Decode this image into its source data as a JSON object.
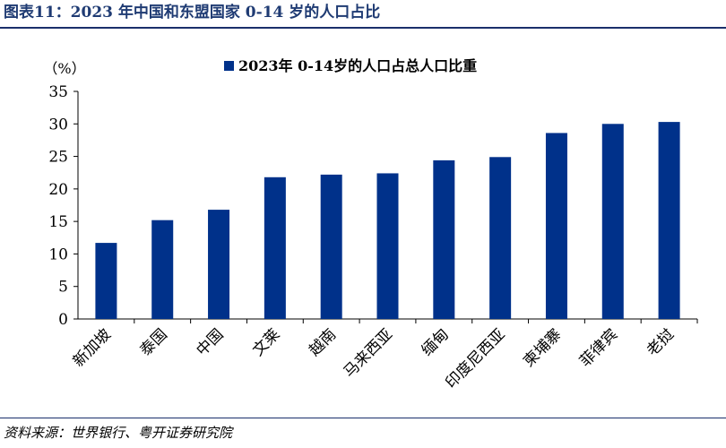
{
  "figure_title": "图表11：2023 年中国和东盟国家 0-14 岁的人口占比",
  "source": "资料来源：世界银行、粤开证券研究院",
  "colors": {
    "bar": "#00318a",
    "title_text": "#1f3b73",
    "rule": "#1a2f6b"
  },
  "chart_data": {
    "type": "bar",
    "unit_label": "（%）",
    "legend": "2023年 0-14岁的人口占总人口比重",
    "legend_position": "top-center",
    "grid": false,
    "categories": [
      "新加坡",
      "泰国",
      "中国",
      "文莱",
      "越南",
      "马来西亚",
      "缅甸",
      "印度尼西亚",
      "柬埔寨",
      "菲律宾",
      "老挝"
    ],
    "series": [
      {
        "name": "2023年 0-14岁的人口占总人口比重",
        "values": [
          11.7,
          15.2,
          16.8,
          21.8,
          22.2,
          22.4,
          24.4,
          24.9,
          28.6,
          30.0,
          30.3
        ]
      }
    ],
    "ylim": [
      0,
      35
    ],
    "yticks": [
      0,
      5,
      10,
      15,
      20,
      25,
      30,
      35
    ]
  }
}
